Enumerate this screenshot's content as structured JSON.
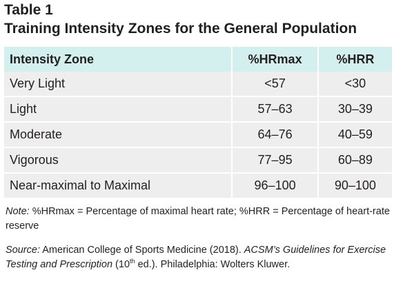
{
  "table": {
    "number": "Table 1",
    "title": "Training Intensity Zones for the General Population",
    "headers": {
      "zone": "Intensity Zone",
      "hrmax": "%HRmax",
      "hrr": "%HRR"
    },
    "rows": [
      {
        "zone": "Very Light",
        "hrmax": "<57",
        "hrr": "<30"
      },
      {
        "zone": "Light",
        "hrmax": "57–63",
        "hrr": "30–39"
      },
      {
        "zone": "Moderate",
        "hrmax": "64–76",
        "hrr": "40–59"
      },
      {
        "zone": "Vigorous",
        "hrmax": "77–95",
        "hrr": "60–89"
      },
      {
        "zone": "Near-maximal to Maximal",
        "hrmax": "96–100",
        "hrr": "90–100"
      }
    ]
  },
  "note": {
    "label": "Note:",
    "text": " %HRmax = Percentage of maximal heart rate; %HRR = Percentage of heart-rate reserve"
  },
  "source": {
    "label": "Source:",
    "authors": " American College of Sports Medicine (2018). ",
    "book_title": "ACSM’s Guidelines for Exercise Testing and Prescription",
    "edition_number": " (10",
    "edition_suffix": "th",
    "edition_rest": " ed.). Philadelphia: Wolters Kluwer."
  },
  "colors": {
    "header_bg": "#d3efee",
    "row_bg": "#eeeeee",
    "text": "#231f20"
  }
}
